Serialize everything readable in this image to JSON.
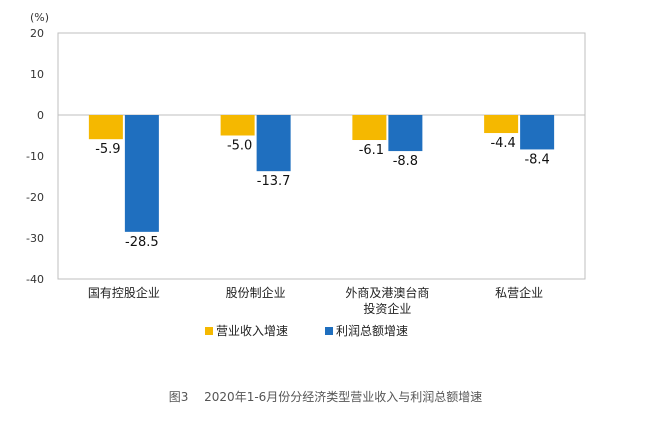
{
  "chart_data": {
    "type": "bar",
    "unit_label": "(%)",
    "categories": [
      [
        "国有控股企业"
      ],
      [
        "股份制企业"
      ],
      [
        "外商及港澳台商",
        "投资企业"
      ],
      [
        "私营企业"
      ]
    ],
    "series": [
      {
        "name": "营业收入增速",
        "values": [
          -5.9,
          -5.0,
          -6.1,
          -4.4
        ],
        "color": "#F5B800"
      },
      {
        "name": "利润总额增速",
        "values": [
          -28.5,
          -13.7,
          -8.8,
          -8.4
        ],
        "color": "#1F6FBF"
      }
    ],
    "ylim": [
      -40,
      20
    ],
    "yticks": [
      20,
      10,
      0,
      -10,
      -20,
      -30,
      -40
    ],
    "grid": false,
    "legend_position": "bottom"
  },
  "caption": {
    "figure_no": "图3",
    "text": "2020年1-6月份分经济类型营业收入与利润总额增速"
  }
}
